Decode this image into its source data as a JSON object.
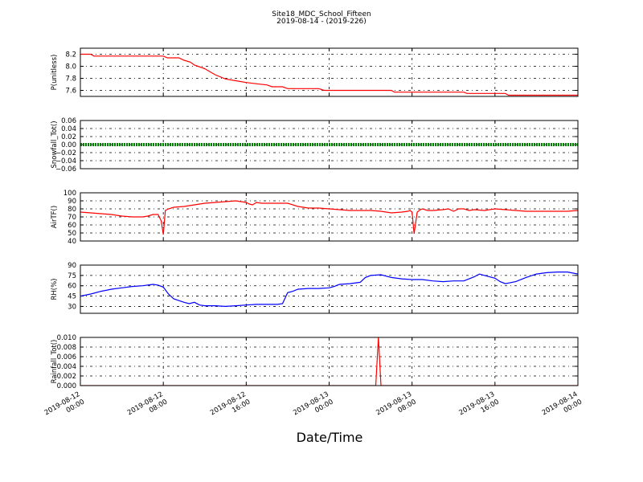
{
  "chart_data": {
    "type": "line",
    "title": "Site18_MDC_School_Fifteen",
    "subtitle": "2019-08-14 - (2019-226)",
    "xlabel": "Date/Time",
    "x_range_hours": [
      0,
      48
    ],
    "x_ticks": [
      {
        "hour": 0,
        "line1": "2019-08-12",
        "line2": "00:00"
      },
      {
        "hour": 8,
        "line1": "2019-08-12",
        "line2": "08:00"
      },
      {
        "hour": 16,
        "line1": "2019-08-12",
        "line2": "16:00"
      },
      {
        "hour": 24,
        "line1": "2019-08-13",
        "line2": "00:00"
      },
      {
        "hour": 32,
        "line1": "2019-08-13",
        "line2": "08:00"
      },
      {
        "hour": 40,
        "line1": "2019-08-13",
        "line2": "16:00"
      },
      {
        "hour": 48,
        "line1": "2019-08-14",
        "line2": "00:00"
      }
    ],
    "grid": true,
    "panels": [
      {
        "id": "p",
        "ylabel": "P(unitless)",
        "ylim": [
          7.5,
          8.3
        ],
        "yticks": [
          7.6,
          7.8,
          8.0,
          8.2
        ],
        "ytick_labels": [
          "7.6",
          "7.8",
          "8.0",
          "8.2"
        ],
        "color": "#ff0000",
        "series": {
          "x": [
            0,
            1,
            1.3,
            2,
            4,
            6,
            7.7,
            8,
            8.4,
            9.5,
            10,
            10.6,
            11,
            12,
            13,
            14,
            15,
            16,
            17,
            18,
            18.5,
            19.5,
            20,
            21,
            22,
            23,
            23.5,
            24,
            25,
            26,
            27,
            28,
            29,
            30,
            30.3,
            32,
            35,
            36,
            37,
            37.3,
            38,
            39,
            40,
            41,
            41.3,
            42,
            44,
            46,
            48
          ],
          "y": [
            8.2,
            8.2,
            8.17,
            8.17,
            8.17,
            8.17,
            8.17,
            8.17,
            8.14,
            8.14,
            8.1,
            8.07,
            8.02,
            7.96,
            7.86,
            7.79,
            7.76,
            7.73,
            7.71,
            7.69,
            7.66,
            7.66,
            7.63,
            7.63,
            7.63,
            7.63,
            7.6,
            7.6,
            7.6,
            7.6,
            7.6,
            7.6,
            7.6,
            7.6,
            7.57,
            7.57,
            7.57,
            7.57,
            7.57,
            7.55,
            7.55,
            7.55,
            7.55,
            7.55,
            7.52,
            7.52,
            7.52,
            7.52,
            7.52
          ]
        }
      },
      {
        "id": "snow",
        "ylabel": "Snowfall_Tot()",
        "ylim": [
          -0.06,
          0.06
        ],
        "yticks": [
          -0.06,
          -0.04,
          -0.02,
          0.0,
          0.02,
          0.04,
          0.06
        ],
        "ytick_labels": [
          "−0.06",
          "−0.04",
          "−0.02",
          "0.00",
          "0.02",
          "0.04",
          "0.06"
        ],
        "color": "#008000",
        "series": {
          "x": [
            0,
            48
          ],
          "y": [
            0,
            0
          ]
        }
      },
      {
        "id": "airt",
        "ylabel": "AirTF()",
        "ylim": [
          40,
          100
        ],
        "yticks": [
          40,
          50,
          60,
          70,
          80,
          90,
          100
        ],
        "ytick_labels": [
          "40",
          "50",
          "60",
          "70",
          "80",
          "90",
          "100"
        ],
        "color": "#ff0000",
        "series": {
          "x": [
            0,
            1,
            2,
            3,
            4,
            5,
            6,
            6.5,
            7,
            7.5,
            7.8,
            8,
            8.2,
            8.5,
            9,
            10,
            11,
            12,
            13,
            14,
            15,
            16,
            16.3,
            16.6,
            17,
            17.5,
            18,
            19,
            20,
            21,
            22,
            23,
            24,
            25,
            26,
            27,
            28,
            29,
            30,
            31,
            31.6,
            31.8,
            32,
            32.2,
            32.5,
            32.8,
            33,
            33.5,
            34,
            35,
            35.5,
            36,
            36.5,
            37,
            37.5,
            38,
            39,
            40,
            41,
            42,
            43,
            44,
            45,
            46,
            47,
            48
          ],
          "y": [
            76,
            75,
            74,
            73,
            71,
            70,
            70,
            71,
            73,
            73,
            65,
            48,
            78,
            80,
            82,
            83,
            85,
            87,
            88,
            89,
            90,
            88,
            86,
            85,
            88,
            87,
            87,
            87,
            87,
            83,
            81,
            81,
            80,
            79,
            78,
            78,
            78,
            77,
            75,
            76,
            77,
            78,
            76,
            49,
            76,
            79,
            80,
            78,
            78,
            79,
            80,
            77,
            80,
            80,
            78,
            79,
            78,
            80,
            79,
            78,
            77,
            77,
            77,
            77,
            77,
            78
          ]
        }
      },
      {
        "id": "rh",
        "ylabel": "RH(%)",
        "ylim": [
          20,
          90
        ],
        "yticks": [
          30,
          45,
          60,
          75,
          90
        ],
        "ytick_labels": [
          "30",
          "45",
          "60",
          "75",
          "90"
        ],
        "color": "#0000ff",
        "series": {
          "x": [
            0,
            1,
            2,
            3,
            4,
            5,
            6,
            7,
            7.5,
            8,
            8.5,
            9,
            10,
            10.5,
            11,
            11.5,
            12,
            13,
            14,
            15,
            16,
            17,
            18,
            19,
            19.5,
            20,
            20.5,
            21,
            22,
            23,
            24,
            24.5,
            25,
            26,
            27,
            27.5,
            28,
            29,
            30,
            31,
            32,
            33,
            34,
            35,
            36,
            37,
            38,
            38.5,
            39,
            40,
            40.5,
            41,
            42,
            43,
            44,
            45,
            46,
            47,
            48
          ],
          "y": [
            45,
            48,
            52,
            55,
            57,
            59,
            60,
            62,
            61,
            58,
            48,
            41,
            36,
            34,
            36,
            32,
            31,
            31,
            30,
            31,
            32,
            33,
            33,
            33,
            34,
            50,
            52,
            55,
            56,
            56,
            57,
            59,
            62,
            63,
            65,
            72,
            75,
            76,
            72,
            70,
            69,
            69,
            67,
            66,
            67,
            67,
            73,
            77,
            75,
            71,
            66,
            63,
            66,
            72,
            77,
            79,
            80,
            80,
            77
          ]
        }
      },
      {
        "id": "rain",
        "ylabel": "Rainfall_Tot()",
        "ylim": [
          0,
          0.01
        ],
        "yticks": [
          0,
          0.002,
          0.004,
          0.006,
          0.008,
          0.01
        ],
        "ytick_labels": [
          "0.000",
          "0.002",
          "0.004",
          "0.006",
          "0.008",
          "0.010"
        ],
        "color": "#ff0000",
        "series": {
          "x": [
            0,
            28.5,
            28.75,
            29.0,
            48
          ],
          "y": [
            0,
            0,
            0.01,
            0,
            0
          ]
        }
      }
    ]
  }
}
